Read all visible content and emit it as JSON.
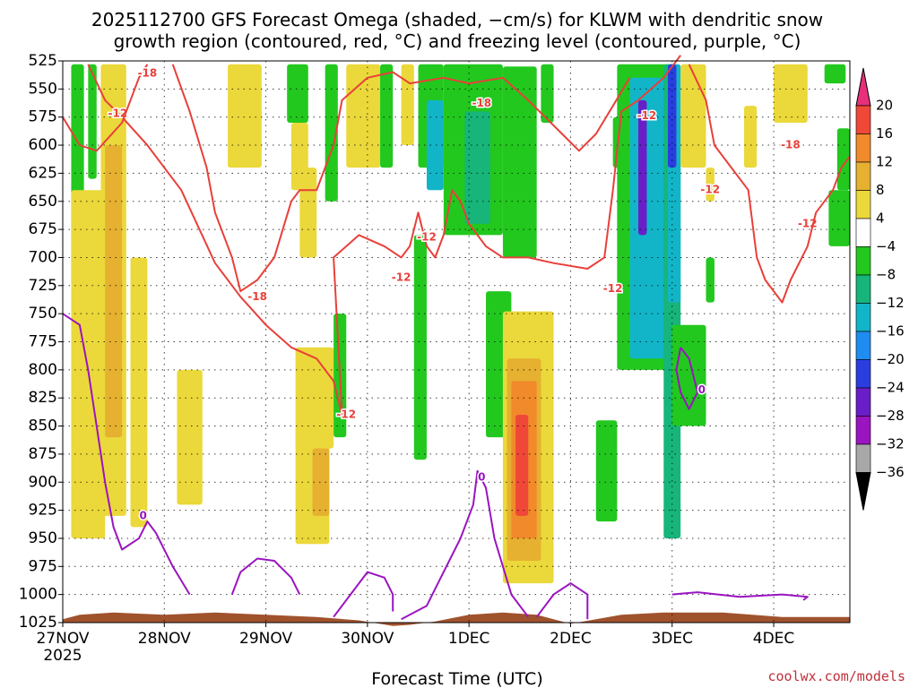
{
  "chart_data": {
    "type": "heatmap",
    "title_line1": "2025112700 GFS Forecast Omega (shaded, −cm/s) for KLWM with dendritic snow",
    "title_line2": "growth region (contoured, red, °C) and freezing level (contoured, purple, °C)",
    "xlabel": "Forecast Time (UTC)",
    "credit": "coolwx.com/models",
    "y_levels": [
      525,
      550,
      575,
      600,
      625,
      650,
      675,
      700,
      725,
      750,
      775,
      800,
      825,
      850,
      875,
      900,
      925,
      950,
      975,
      1000,
      1025
    ],
    "y_range": [
      525,
      1025
    ],
    "x_range_hours": [
      0,
      186
    ],
    "x_ticks": [
      {
        "hour": 0,
        "label": "27NOV",
        "sub": "2025"
      },
      {
        "hour": 24,
        "label": "28NOV"
      },
      {
        "hour": 48,
        "label": "29NOV"
      },
      {
        "hour": 72,
        "label": "30NOV"
      },
      {
        "hour": 96,
        "label": "1DEC"
      },
      {
        "hour": 120,
        "label": "2DEC"
      },
      {
        "hour": 144,
        "label": "3DEC"
      },
      {
        "hour": 168,
        "label": "4DEC"
      }
    ],
    "colorbar": {
      "bins": [
        {
          "lo": 20,
          "hi": 99,
          "color": "#e8307a"
        },
        {
          "lo": 16,
          "hi": 20,
          "color": "#f04838"
        },
        {
          "lo": 12,
          "hi": 16,
          "color": "#f08a2a"
        },
        {
          "lo": 8,
          "hi": 12,
          "color": "#e6b030"
        },
        {
          "lo": 4,
          "hi": 8,
          "color": "#ebd83a"
        },
        {
          "lo": -4,
          "hi": 4,
          "color": "#ffffff"
        },
        {
          "lo": -8,
          "hi": -4,
          "color": "#22c81e"
        },
        {
          "lo": -12,
          "hi": -8,
          "color": "#17b57a"
        },
        {
          "lo": -16,
          "hi": -12,
          "color": "#12b5c8"
        },
        {
          "lo": -20,
          "hi": -16,
          "color": "#1e8cf0"
        },
        {
          "lo": -24,
          "hi": -20,
          "color": "#2a3ee0"
        },
        {
          "lo": -28,
          "hi": -24,
          "color": "#6a1ec8"
        },
        {
          "lo": -32,
          "hi": -28,
          "color": "#9a14c0"
        },
        {
          "lo": -36,
          "hi": -32,
          "color": "#a8a8a8"
        },
        {
          "lo": -99,
          "hi": -36,
          "color": "#000000"
        }
      ],
      "labels": [
        "20",
        "16",
        "12",
        "8",
        "4",
        "−4",
        "−8",
        "−12",
        "−16",
        "−20",
        "−24",
        "−28",
        "−32",
        "−36"
      ]
    },
    "omega_regions": [
      {
        "t0": 2,
        "t1": 5,
        "p0": 528,
        "p1": 725,
        "color": "#22c81e"
      },
      {
        "t0": 6,
        "t1": 8,
        "p0": 528,
        "p1": 630,
        "color": "#22c81e"
      },
      {
        "t0": 2,
        "t1": 10,
        "p0": 640,
        "p1": 950,
        "color": "#ebd83a"
      },
      {
        "t0": 9,
        "t1": 15,
        "p0": 528,
        "p1": 930,
        "color": "#ebd83a"
      },
      {
        "t0": 10,
        "t1": 14,
        "p0": 600,
        "p1": 860,
        "color": "#e6b030"
      },
      {
        "t0": 16,
        "t1": 20,
        "p0": 700,
        "p1": 940,
        "color": "#ebd83a"
      },
      {
        "t0": 27,
        "t1": 33,
        "p0": 800,
        "p1": 920,
        "color": "#ebd83a"
      },
      {
        "t0": 39,
        "t1": 47,
        "p0": 528,
        "p1": 620,
        "color": "#ebd83a"
      },
      {
        "t0": 53,
        "t1": 58,
        "p0": 528,
        "p1": 580,
        "color": "#22c81e"
      },
      {
        "t0": 54,
        "t1": 58,
        "p0": 580,
        "p1": 640,
        "color": "#ebd83a"
      },
      {
        "t0": 55,
        "t1": 64,
        "p0": 780,
        "p1": 870,
        "color": "#ebd83a"
      },
      {
        "t0": 55,
        "t1": 63,
        "p0": 850,
        "p1": 955,
        "color": "#ebd83a"
      },
      {
        "t0": 59,
        "t1": 63,
        "p0": 870,
        "p1": 930,
        "color": "#e6b030"
      },
      {
        "t0": 56,
        "t1": 60,
        "p0": 620,
        "p1": 700,
        "color": "#ebd83a"
      },
      {
        "t0": 62,
        "t1": 65,
        "p0": 528,
        "p1": 650,
        "color": "#22c81e"
      },
      {
        "t0": 64,
        "t1": 67,
        "p0": 750,
        "p1": 860,
        "color": "#22c81e"
      },
      {
        "t0": 67,
        "t1": 75,
        "p0": 528,
        "p1": 620,
        "color": "#ebd83a"
      },
      {
        "t0": 75,
        "t1": 78,
        "p0": 528,
        "p1": 620,
        "color": "#22c81e"
      },
      {
        "t0": 80,
        "t1": 83,
        "p0": 528,
        "p1": 600,
        "color": "#ebd83a"
      },
      {
        "t0": 83,
        "t1": 86,
        "p0": 680,
        "p1": 880,
        "color": "#22c81e"
      },
      {
        "t0": 84,
        "t1": 90,
        "p0": 528,
        "p1": 620,
        "color": "#22c81e"
      },
      {
        "t0": 86,
        "t1": 90,
        "p0": 560,
        "p1": 640,
        "color": "#12b5c8"
      },
      {
        "t0": 90,
        "t1": 104,
        "p0": 528,
        "p1": 680,
        "color": "#22c81e"
      },
      {
        "t0": 95,
        "t1": 101,
        "p0": 570,
        "p1": 670,
        "color": "#17b57a"
      },
      {
        "t0": 104,
        "t1": 112,
        "p0": 530,
        "p1": 700,
        "color": "#22c81e"
      },
      {
        "t0": 113,
        "t1": 116,
        "p0": 528,
        "p1": 580,
        "color": "#22c81e"
      },
      {
        "t0": 100,
        "t1": 106,
        "p0": 730,
        "p1": 860,
        "color": "#22c81e"
      },
      {
        "t0": 104,
        "t1": 116,
        "p0": 748,
        "p1": 990,
        "color": "#ebd83a"
      },
      {
        "t0": 105,
        "t1": 113,
        "p0": 790,
        "p1": 970,
        "color": "#e6b030"
      },
      {
        "t0": 106,
        "t1": 112,
        "p0": 810,
        "p1": 950,
        "color": "#f08a2a"
      },
      {
        "t0": 107,
        "t1": 110,
        "p0": 840,
        "p1": 930,
        "color": "#f04838"
      },
      {
        "t0": 126,
        "t1": 131,
        "p0": 845,
        "p1": 935,
        "color": "#22c81e"
      },
      {
        "t0": 130,
        "t1": 134,
        "p0": 575,
        "p1": 620,
        "color": "#22c81e"
      },
      {
        "t0": 131,
        "t1": 145,
        "p0": 528,
        "p1": 800,
        "color": "#22c81e"
      },
      {
        "t0": 134,
        "t1": 144,
        "p0": 540,
        "p1": 790,
        "color": "#12b5c8"
      },
      {
        "t0": 136,
        "t1": 138,
        "p0": 560,
        "p1": 680,
        "color": "#6a1ec8"
      },
      {
        "t0": 142,
        "t1": 146,
        "p0": 528,
        "p1": 950,
        "color": "#17b57a"
      },
      {
        "t0": 143,
        "t1": 146,
        "p0": 528,
        "p1": 740,
        "color": "#12b5c8"
      },
      {
        "t0": 143,
        "t1": 145,
        "p0": 528,
        "p1": 620,
        "color": "#2a3ee0"
      },
      {
        "t0": 144,
        "t1": 152,
        "p0": 760,
        "p1": 850,
        "color": "#22c81e"
      },
      {
        "t0": 146,
        "t1": 152,
        "p0": 528,
        "p1": 620,
        "color": "#ebd83a"
      },
      {
        "t0": 152,
        "t1": 154,
        "p0": 620,
        "p1": 650,
        "color": "#ebd83a"
      },
      {
        "t0": 152,
        "t1": 154,
        "p0": 700,
        "p1": 740,
        "color": "#22c81e"
      },
      {
        "t0": 161,
        "t1": 164,
        "p0": 565,
        "p1": 620,
        "color": "#ebd83a"
      },
      {
        "t0": 168,
        "t1": 176,
        "p0": 528,
        "p1": 580,
        "color": "#ebd83a"
      },
      {
        "t0": 180,
        "t1": 185,
        "p0": 528,
        "p1": 545,
        "color": "#22c81e"
      },
      {
        "t0": 181,
        "t1": 186,
        "p0": 640,
        "p1": 690,
        "color": "#22c81e"
      },
      {
        "t0": 183,
        "t1": 186,
        "p0": 585,
        "p1": 640,
        "color": "#22c81e"
      }
    ],
    "terrain": {
      "color": "#a0522d",
      "points": [
        [
          0,
          1022
        ],
        [
          4,
          1018
        ],
        [
          12,
          1016
        ],
        [
          24,
          1018
        ],
        [
          36,
          1016
        ],
        [
          48,
          1018
        ],
        [
          60,
          1020
        ],
        [
          70,
          1023
        ],
        [
          78,
          1028
        ],
        [
          82,
          1027
        ],
        [
          88,
          1024
        ],
        [
          96,
          1018
        ],
        [
          104,
          1016
        ],
        [
          112,
          1018
        ],
        [
          120,
          1026
        ],
        [
          126,
          1022
        ],
        [
          132,
          1018
        ],
        [
          142,
          1016
        ],
        [
          156,
          1016
        ],
        [
          170,
          1020
        ],
        [
          180,
          1020
        ],
        [
          186,
          1020
        ]
      ]
    },
    "red_contours": [
      {
        "label": "-12",
        "points": [
          [
            6,
            528
          ],
          [
            10,
            560
          ],
          [
            14,
            575
          ],
          [
            20,
            600
          ],
          [
            28,
            640
          ],
          [
            36,
            705
          ],
          [
            42,
            735
          ],
          [
            48,
            760
          ],
          [
            54,
            780
          ],
          [
            60,
            790
          ],
          [
            64,
            810
          ],
          [
            66,
            840
          ],
          [
            64,
            700
          ],
          [
            70,
            680
          ],
          [
            76,
            690
          ],
          [
            80,
            700
          ],
          [
            82,
            690
          ],
          [
            84,
            660
          ],
          [
            86,
            690
          ],
          [
            88,
            700
          ],
          [
            90,
            680
          ],
          [
            92,
            640
          ],
          [
            94,
            650
          ],
          [
            96,
            670
          ],
          [
            100,
            690
          ],
          [
            104,
            700
          ],
          [
            110,
            700
          ],
          [
            116,
            705
          ],
          [
            124,
            710
          ],
          [
            128,
            700
          ],
          [
            130,
            640
          ],
          [
            132,
            570
          ],
          [
            136,
            560
          ],
          [
            142,
            540
          ],
          [
            146,
            520
          ]
        ],
        "label_positions": [
          [
            13,
            572
          ],
          [
            86,
            682
          ],
          [
            80,
            718
          ],
          [
            130,
            728
          ],
          [
            138,
            574
          ],
          [
            153,
            640
          ],
          [
            176,
            670
          ],
          [
            67,
            840
          ]
        ]
      },
      {
        "label": "-18",
        "points": [
          [
            0,
            575
          ],
          [
            4,
            600
          ],
          [
            8,
            605
          ],
          [
            14,
            580
          ],
          [
            18,
            540
          ],
          [
            20,
            528
          ]
        ],
        "label_positions": [
          [
            20,
            536
          ]
        ]
      },
      {
        "label": "-18",
        "points": [
          [
            26,
            528
          ],
          [
            30,
            570
          ],
          [
            34,
            620
          ],
          [
            36,
            660
          ],
          [
            40,
            700
          ],
          [
            42,
            730
          ],
          [
            46,
            720
          ],
          [
            50,
            700
          ],
          [
            54,
            650
          ],
          [
            56,
            640
          ],
          [
            60,
            640
          ],
          [
            64,
            600
          ],
          [
            66,
            560
          ],
          [
            72,
            540
          ],
          [
            78,
            535
          ],
          [
            82,
            545
          ],
          [
            90,
            540
          ],
          [
            96,
            545
          ],
          [
            104,
            540
          ],
          [
            110,
            560
          ],
          [
            114,
            575
          ],
          [
            118,
            590
          ],
          [
            122,
            605
          ],
          [
            126,
            590
          ],
          [
            130,
            565
          ],
          [
            134,
            540
          ]
        ],
        "label_positions": [
          [
            46,
            735
          ],
          [
            99,
            563
          ]
        ]
      },
      {
        "label": "-18",
        "points": [
          [
            148,
            528
          ],
          [
            152,
            560
          ],
          [
            154,
            600
          ],
          [
            158,
            620
          ],
          [
            162,
            640
          ],
          [
            164,
            700
          ],
          [
            166,
            720
          ],
          [
            170,
            740
          ],
          [
            172,
            720
          ],
          [
            176,
            690
          ],
          [
            178,
            660
          ],
          [
            182,
            640
          ],
          [
            184,
            620
          ],
          [
            186,
            610
          ]
        ],
        "label_positions": [
          [
            172,
            600
          ]
        ]
      }
    ],
    "purple_contours": [
      {
        "label": "0",
        "points": [
          [
            0,
            750
          ],
          [
            4,
            760
          ],
          [
            6,
            800
          ],
          [
            8,
            850
          ],
          [
            10,
            900
          ],
          [
            12,
            940
          ],
          [
            14,
            960
          ],
          [
            18,
            950
          ],
          [
            20,
            935
          ],
          [
            22,
            945
          ],
          [
            26,
            975
          ],
          [
            30,
            1000
          ]
        ],
        "label_positions": [
          [
            19,
            930
          ]
        ]
      },
      {
        "label": "0",
        "points": [
          [
            40,
            1000
          ],
          [
            42,
            980
          ],
          [
            46,
            968
          ],
          [
            50,
            970
          ],
          [
            54,
            985
          ],
          [
            56,
            1000
          ]
        ]
      },
      {
        "label": "0",
        "points": [
          [
            64,
            1020
          ],
          [
            68,
            1000
          ],
          [
            72,
            980
          ],
          [
            76,
            985
          ],
          [
            78,
            1000
          ],
          [
            78,
            1015
          ]
        ]
      },
      {
        "label": "0",
        "points": [
          [
            80,
            1022
          ],
          [
            86,
            1010
          ],
          [
            90,
            980
          ],
          [
            94,
            950
          ],
          [
            97,
            920
          ],
          [
            98,
            890
          ],
          [
            100,
            905
          ],
          [
            102,
            950
          ],
          [
            106,
            1000
          ],
          [
            110,
            1020
          ]
        ],
        "label_positions": [
          [
            99,
            896
          ]
        ]
      },
      {
        "label": "0",
        "points": [
          [
            112,
            1020
          ],
          [
            116,
            1000
          ],
          [
            120,
            990
          ],
          [
            124,
            1000
          ],
          [
            124,
            1022
          ]
        ]
      },
      {
        "label": "0",
        "points": [
          [
            146,
            780
          ],
          [
            148,
            790
          ],
          [
            150,
            820
          ],
          [
            148,
            835
          ],
          [
            146,
            820
          ],
          [
            145,
            800
          ],
          [
            146,
            780
          ]
        ],
        "label_positions": [
          [
            151,
            818
          ]
        ]
      },
      {
        "label": "0",
        "points": [
          [
            144,
            1000
          ],
          [
            150,
            998
          ],
          [
            160,
            1002
          ],
          [
            170,
            1000
          ],
          [
            176,
            1002
          ],
          [
            175,
            1005
          ]
        ]
      }
    ]
  }
}
